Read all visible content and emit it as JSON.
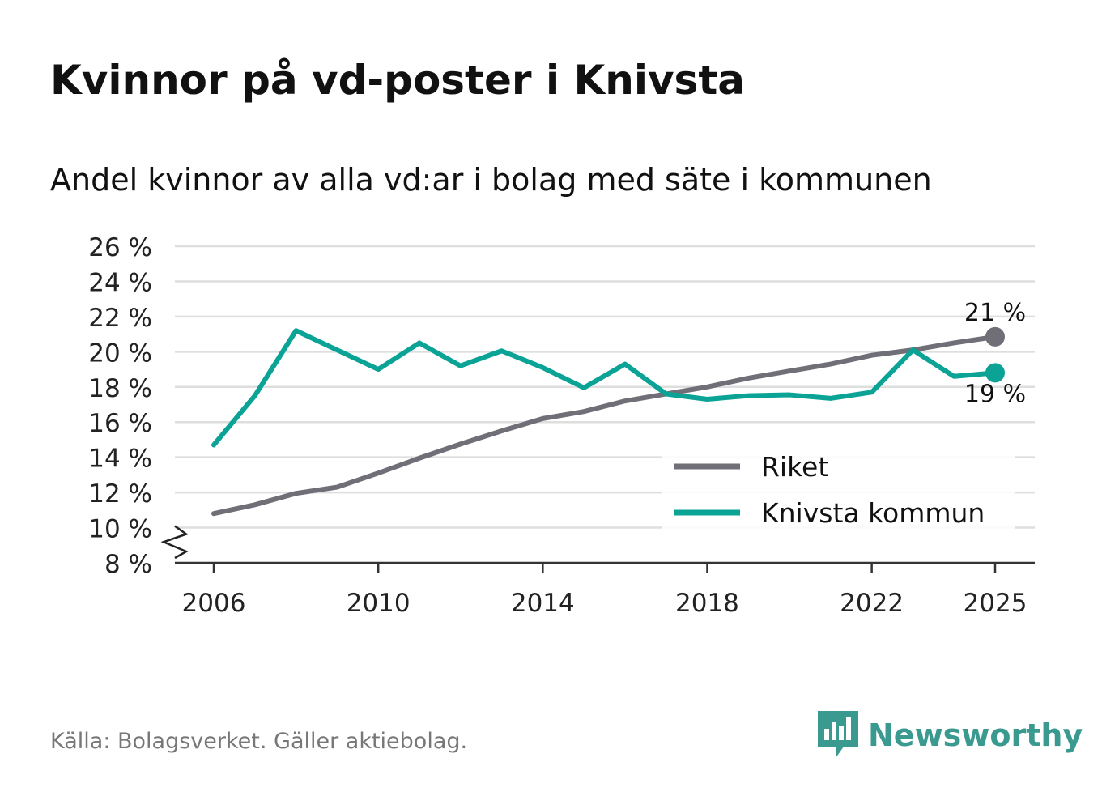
{
  "title": "Kvinnor på vd-poster i Knivsta",
  "subtitle": "Andel kvinnor av alla vd:ar i bolag med säte i kommunen",
  "source": "Källa: Bolagsverket. Gäller aktiebolag.",
  "brand": {
    "name": "Newsworthy",
    "icon": "newsworthy-logo-icon",
    "color": "#3a9a8f"
  },
  "chart_data": {
    "type": "line",
    "title": "Kvinnor på vd-poster i Knivsta",
    "subtitle": "Andel kvinnor av alla vd:ar i bolag med säte i kommunen",
    "xlabel": "",
    "ylabel": "",
    "ylim": [
      8,
      26
    ],
    "y_axis_break": true,
    "grid": true,
    "legend_position": "bottom-right",
    "y_ticks": [
      8,
      10,
      12,
      14,
      16,
      18,
      20,
      22,
      24,
      26
    ],
    "y_tick_labels": [
      "8 %",
      "10 %",
      "12 %",
      "14 %",
      "16 %",
      "18 %",
      "20 %",
      "22 %",
      "24 %",
      "26 %"
    ],
    "x_ticks": [
      2006,
      2010,
      2014,
      2018,
      2022,
      2025
    ],
    "x_tick_labels": [
      "2006",
      "2010",
      "2014",
      "2018",
      "2022",
      "2025"
    ],
    "x": [
      2006,
      2007,
      2008,
      2009,
      2010,
      2011,
      2012,
      2013,
      2014,
      2015,
      2016,
      2017,
      2018,
      2019,
      2020,
      2021,
      2022,
      2023,
      2024,
      2025
    ],
    "series": [
      {
        "name": "Riket",
        "color": "#706e77",
        "values": [
          10.8,
          11.3,
          11.95,
          12.3,
          13.1,
          13.95,
          14.75,
          15.5,
          16.2,
          16.6,
          17.2,
          17.6,
          18.0,
          18.5,
          18.9,
          19.3,
          19.8,
          20.1,
          20.5,
          20.85
        ],
        "end_label": "21 %"
      },
      {
        "name": "Knivsta kommun",
        "color": "#0aa396",
        "values": [
          14.7,
          17.5,
          21.2,
          20.1,
          19.0,
          20.5,
          19.2,
          20.05,
          19.1,
          17.95,
          19.3,
          17.6,
          17.3,
          17.5,
          17.55,
          17.35,
          17.7,
          20.1,
          18.6,
          18.8
        ],
        "end_label": "19 %"
      }
    ]
  }
}
